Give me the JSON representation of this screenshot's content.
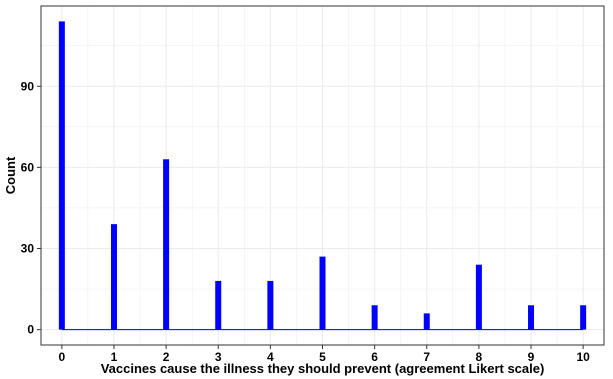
{
  "chart_data": {
    "type": "bar",
    "title": "",
    "xlabel": "Vaccines cause the illness they should prevent (agreement Likert scale)",
    "ylabel": "Count",
    "categories": [
      "0",
      "1",
      "2",
      "3",
      "4",
      "5",
      "6",
      "7",
      "8",
      "9",
      "10"
    ],
    "x": [
      0,
      1,
      2,
      3,
      4,
      5,
      6,
      7,
      8,
      9,
      10
    ],
    "values": [
      114,
      39,
      63,
      18,
      18,
      27,
      9,
      6,
      24,
      9,
      9
    ],
    "yticks": [
      0,
      30,
      60,
      90
    ],
    "xlim": [
      -0.4,
      10.4
    ],
    "ylim": [
      -5.7,
      119.7
    ],
    "grid": true,
    "bar_color": "#0000FF",
    "baseline_color": "#0000FF",
    "frame_color": "#333333",
    "grid_color": "#EBEBEB"
  }
}
